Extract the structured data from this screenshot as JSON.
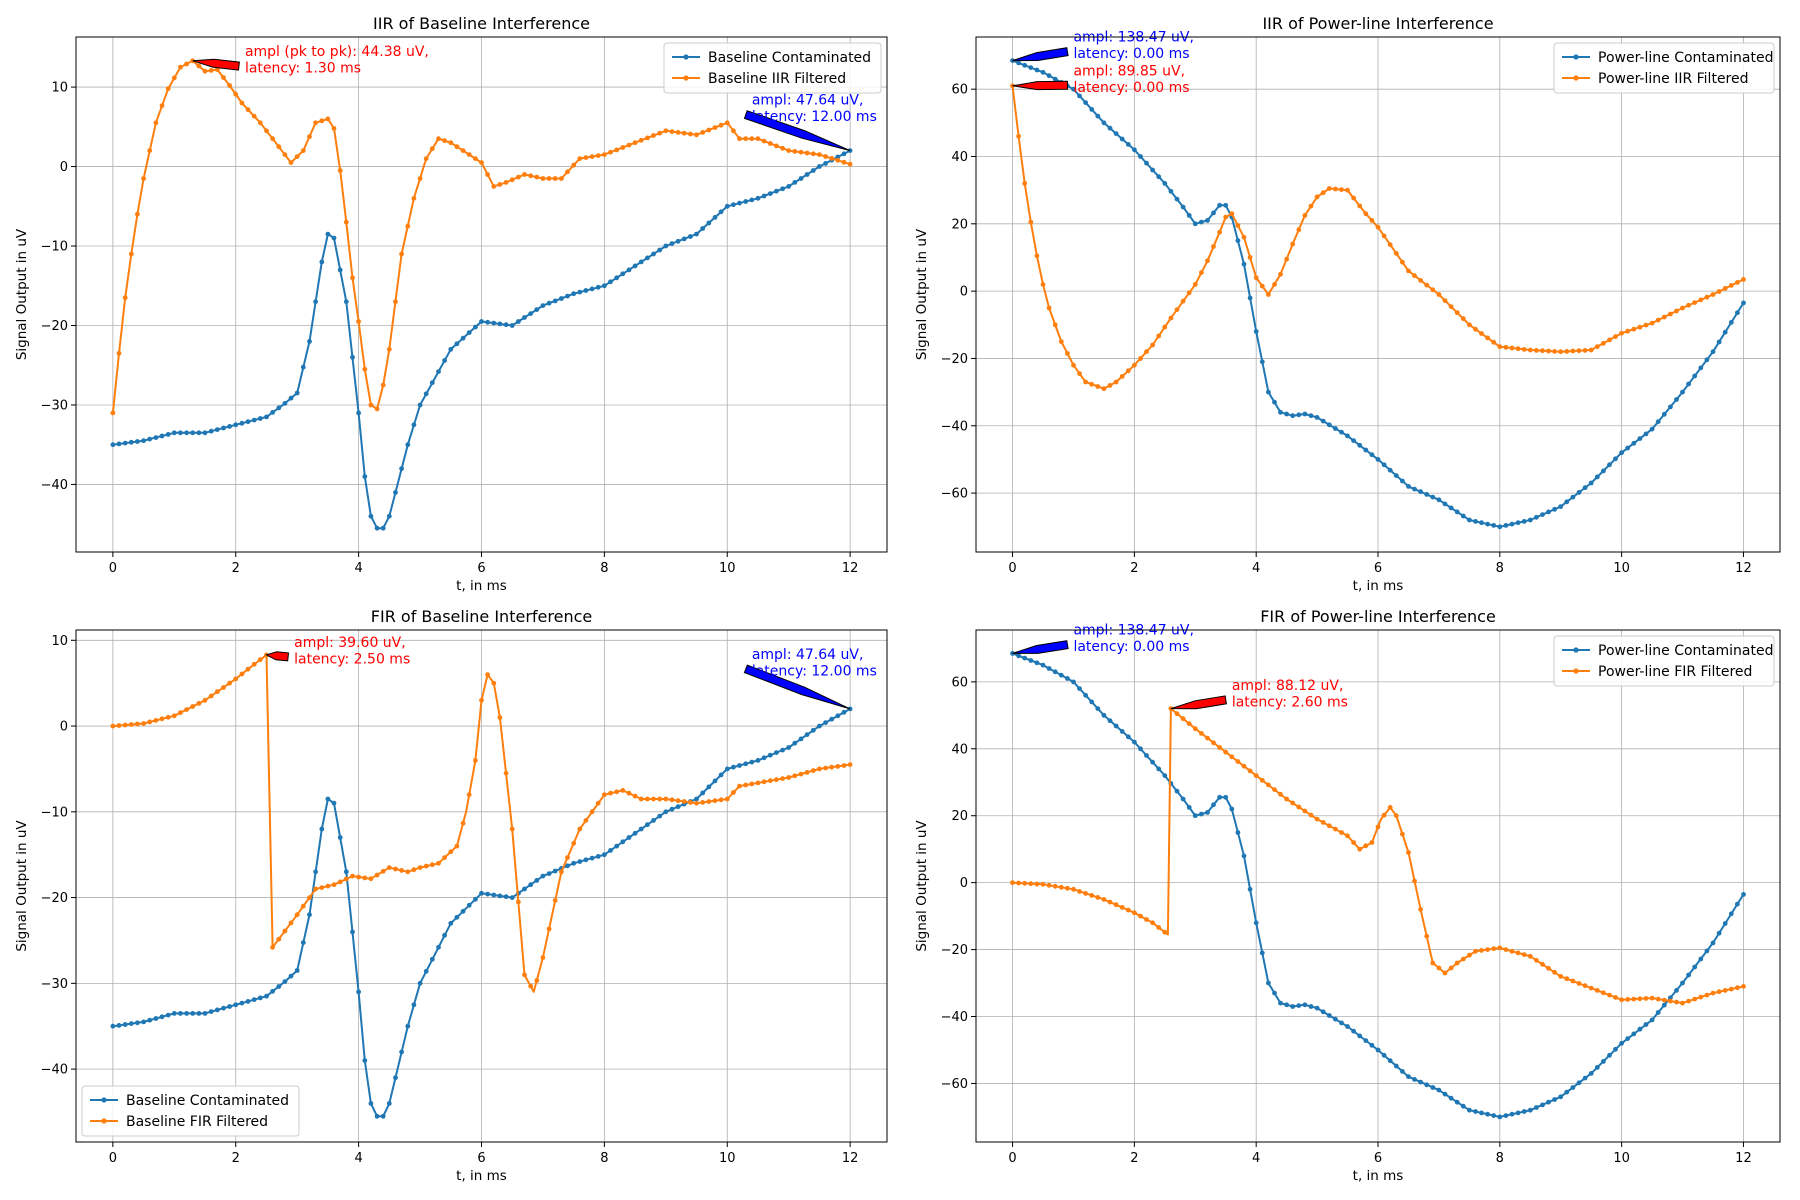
{
  "colors": {
    "contaminated": "#1f77b4",
    "filtered": "#ff7f0e",
    "annot_red": "#ff0000",
    "annot_blue": "#0000ff",
    "grid": "#b0b0b0"
  },
  "chart_data": [
    {
      "type": "line",
      "title": "IIR of Baseline Interference",
      "xlabel": "t, in ms",
      "ylabel": "Signal Output in uV",
      "xlim": [
        -0.6,
        12.6
      ],
      "ylim": [
        -48.5,
        16.3
      ],
      "xticks": [
        0,
        2,
        4,
        6,
        8,
        10,
        12
      ],
      "yticks": [
        -40,
        -30,
        -20,
        -10,
        0,
        10
      ],
      "grid": true,
      "legend_loc": "upper right",
      "series": [
        {
          "name": "Baseline Contaminated",
          "color_key": "contaminated",
          "x": [
            0,
            0.5,
            1.0,
            1.5,
            2.0,
            2.5,
            2.8,
            3.0,
            3.2,
            3.4,
            3.5,
            3.6,
            3.8,
            4.0,
            4.1,
            4.2,
            4.3,
            4.4,
            4.5,
            4.6,
            4.8,
            5.0,
            5.5,
            6.0,
            6.5,
            7.0,
            7.5,
            8.0,
            8.5,
            9.0,
            9.5,
            10.0,
            10.5,
            11.0,
            11.5,
            12.0
          ],
          "y": [
            -35,
            -34.5,
            -33.5,
            -33.5,
            -32.5,
            -31.5,
            -29.8,
            -28.5,
            -22,
            -12,
            -8.5,
            -9,
            -17,
            -31,
            -39,
            -44,
            -45.5,
            -45.5,
            -44,
            -41,
            -35,
            -30,
            -23,
            -19.5,
            -20,
            -17.5,
            -16,
            -15,
            -12.5,
            -10,
            -8.5,
            -5,
            -4,
            -2.5,
            0,
            2
          ]
        },
        {
          "name": "Baseline IIR Filtered",
          "color_key": "filtered",
          "x": [
            0,
            0.1,
            0.2,
            0.3,
            0.4,
            0.5,
            0.7,
            0.9,
            1.1,
            1.3,
            1.5,
            1.7,
            1.9,
            2.1,
            2.4,
            2.7,
            2.9,
            3.1,
            3.3,
            3.5,
            3.6,
            3.7,
            3.8,
            3.9,
            4.0,
            4.1,
            4.2,
            4.3,
            4.4,
            4.5,
            4.7,
            4.9,
            5.1,
            5.3,
            5.5,
            5.7,
            6.0,
            6.2,
            6.4,
            6.7,
            7.0,
            7.3,
            7.6,
            8.0,
            8.5,
            9.0,
            9.5,
            10.0,
            10.2,
            10.5,
            11.0,
            11.5,
            12.0
          ],
          "y": [
            -31,
            -23.5,
            -16.5,
            -11,
            -6,
            -1.5,
            5.5,
            9.8,
            12.5,
            13.3,
            12,
            12.2,
            10.2,
            8,
            5.5,
            2.5,
            0.5,
            2,
            5.5,
            6,
            4.8,
            -0.5,
            -7,
            -14,
            -19.5,
            -25.5,
            -30,
            -30.5,
            -27.5,
            -23,
            -11,
            -4,
            1,
            3.5,
            3,
            2,
            0.5,
            -2.5,
            -2,
            -1,
            -1.5,
            -1.5,
            1,
            1.5,
            3,
            4.5,
            4,
            5.5,
            3.5,
            3.5,
            2,
            1.5,
            0.3
          ]
        }
      ],
      "annotations": [
        {
          "lines": [
            "ampl (pk to pk): 44.38 uV,",
            "latency: 1.30 ms"
          ],
          "color_key": "annot_red",
          "point": [
            1.3,
            13.3
          ],
          "text_at": [
            2.15,
            14.4
          ],
          "arrow_color": "#ff0000"
        },
        {
          "lines": [
            "ampl: 47.64 uV,",
            "latency: 12.00 ms"
          ],
          "color_key": "annot_blue",
          "point": [
            12.0,
            2.0
          ],
          "text_at": [
            10.4,
            8.3
          ],
          "arrow_color": "#0000ff"
        }
      ]
    },
    {
      "type": "line",
      "title": "IIR of Power-line Interference",
      "xlabel": "t, in ms",
      "ylabel": "Signal Output in uV",
      "xlim": [
        -0.6,
        12.6
      ],
      "ylim": [
        -77.5,
        75.5
      ],
      "xticks": [
        0,
        2,
        4,
        6,
        8,
        10,
        12
      ],
      "yticks": [
        -60,
        -40,
        -20,
        0,
        20,
        40,
        60
      ],
      "grid": true,
      "legend_loc": "upper right",
      "series": [
        {
          "name": "Power-line Contaminated",
          "color_key": "contaminated",
          "x": [
            0,
            0.5,
            1.0,
            1.5,
            2.0,
            2.5,
            2.8,
            3.0,
            3.2,
            3.4,
            3.5,
            3.6,
            3.8,
            4.0,
            4.2,
            4.4,
            4.6,
            4.8,
            5.0,
            5.5,
            6.0,
            6.5,
            7.0,
            7.5,
            8.0,
            8.5,
            9.0,
            9.5,
            10.0,
            10.5,
            11.0,
            11.5,
            12.0
          ],
          "y": [
            68.5,
            65,
            60,
            50,
            42,
            32,
            25,
            20,
            21,
            25.5,
            25.5,
            22,
            8,
            -12,
            -30,
            -36,
            -37,
            -36.5,
            -37.5,
            -43,
            -50,
            -58,
            -62,
            -68,
            -70,
            -68,
            -64,
            -57,
            -48,
            -41,
            -30,
            -18,
            -3.5
          ]
        },
        {
          "name": "Power-line IIR Filtered",
          "color_key": "filtered",
          "x": [
            0,
            0.1,
            0.2,
            0.3,
            0.4,
            0.5,
            0.6,
            0.8,
            1.0,
            1.2,
            1.5,
            1.7,
            2.0,
            2.3,
            2.6,
            3.0,
            3.2,
            3.4,
            3.5,
            3.6,
            3.8,
            4.0,
            4.2,
            4.4,
            4.6,
            4.8,
            5.0,
            5.2,
            5.5,
            5.8,
            6.0,
            6.5,
            7.0,
            7.5,
            8.0,
            8.5,
            9.0,
            9.5,
            10.0,
            10.5,
            11.0,
            11.5,
            12.0
          ],
          "y": [
            61,
            46,
            32,
            20.5,
            10.5,
            2,
            -5,
            -15,
            -22,
            -27,
            -29,
            -27,
            -22,
            -16,
            -8,
            2,
            9,
            17.5,
            22,
            23,
            16,
            4,
            -1,
            5,
            14,
            22.5,
            28,
            30.5,
            30,
            23,
            19,
            6,
            -1,
            -10,
            -16.5,
            -17.5,
            -18,
            -17.5,
            -12.5,
            -9.5,
            -5,
            -1,
            3.5
          ]
        }
      ],
      "annotations": [
        {
          "lines": [
            "ampl: 138.47 uV,",
            "latency: 0.00 ms"
          ],
          "color_key": "annot_blue",
          "point": [
            0.0,
            68.5
          ],
          "text_at": [
            1.0,
            75.3
          ],
          "arrow_color": "#0000ff"
        },
        {
          "lines": [
            "ampl: 89.85 uV,",
            "latency: 0.00 ms"
          ],
          "color_key": "annot_red",
          "point": [
            0.0,
            61.0
          ],
          "text_at": [
            1.0,
            65.3
          ],
          "arrow_color": "#ff0000"
        }
      ]
    },
    {
      "type": "line",
      "title": "FIR of Baseline Interference",
      "xlabel": "t, in ms",
      "ylabel": "Signal Output in uV",
      "xlim": [
        -0.6,
        12.6
      ],
      "ylim": [
        -48.5,
        11.2
      ],
      "xticks": [
        0,
        2,
        4,
        6,
        8,
        10,
        12
      ],
      "yticks": [
        -40,
        -30,
        -20,
        -10,
        0,
        10
      ],
      "grid": true,
      "legend_loc": "lower left",
      "series": [
        {
          "name": "Baseline Contaminated",
          "color_key": "contaminated",
          "x": [
            0,
            0.5,
            1.0,
            1.5,
            2.0,
            2.5,
            2.8,
            3.0,
            3.2,
            3.4,
            3.5,
            3.6,
            3.8,
            4.0,
            4.1,
            4.2,
            4.3,
            4.4,
            4.5,
            4.6,
            4.8,
            5.0,
            5.5,
            6.0,
            6.5,
            7.0,
            7.5,
            8.0,
            8.5,
            9.0,
            9.5,
            10.0,
            10.5,
            11.0,
            11.5,
            12.0
          ],
          "y": [
            -35,
            -34.5,
            -33.5,
            -33.5,
            -32.5,
            -31.5,
            -29.8,
            -28.5,
            -22,
            -12,
            -8.5,
            -9,
            -17,
            -31,
            -39,
            -44,
            -45.5,
            -45.5,
            -44,
            -41,
            -35,
            -30,
            -23,
            -19.5,
            -20,
            -17.5,
            -16,
            -15,
            -12.5,
            -10,
            -8.5,
            -5,
            -4,
            -2.5,
            0,
            2
          ]
        },
        {
          "name": "Baseline FIR Filtered",
          "color_key": "filtered",
          "x": [
            0,
            0.5,
            1.0,
            1.5,
            2.0,
            2.3,
            2.5,
            2.6,
            3.0,
            3.3,
            3.6,
            3.9,
            4.2,
            4.5,
            4.8,
            5.0,
            5.3,
            5.6,
            5.75,
            5.9,
            6.0,
            6.1,
            6.2,
            6.3,
            6.5,
            6.7,
            6.85,
            7.0,
            7.3,
            7.6,
            8.0,
            8.3,
            8.6,
            9.0,
            9.5,
            10.0,
            10.2,
            10.6,
            11.0,
            11.5,
            12.0
          ],
          "y": [
            0,
            0.3,
            1.2,
            3,
            5.5,
            7.2,
            8.3,
            -25.8,
            -22,
            -19,
            -18.5,
            -17.5,
            -17.8,
            -16.5,
            -17,
            -16.5,
            -16,
            -14,
            -10,
            -4,
            3,
            6,
            5,
            1,
            -12,
            -29,
            -31,
            -27,
            -17,
            -12,
            -8,
            -7.5,
            -8.5,
            -8.5,
            -9,
            -8.5,
            -7,
            -6.5,
            -6,
            -5,
            -4.5
          ]
        }
      ],
      "annotations": [
        {
          "lines": [
            "ampl: 39.60 uV,",
            "latency: 2.50 ms"
          ],
          "color_key": "annot_red",
          "point": [
            2.5,
            8.3
          ],
          "text_at": [
            2.95,
            9.7
          ],
          "arrow_color": "#ff0000"
        },
        {
          "lines": [
            "ampl: 47.64 uV,",
            "latency: 12.00 ms"
          ],
          "color_key": "annot_blue",
          "point": [
            12.0,
            2.0
          ],
          "text_at": [
            10.4,
            8.3
          ],
          "arrow_color": "#0000ff"
        }
      ]
    },
    {
      "type": "line",
      "title": "FIR of Power-line Interference",
      "xlabel": "t, in ms",
      "ylabel": "Signal Output in uV",
      "xlim": [
        -0.6,
        12.6
      ],
      "ylim": [
        -77.5,
        75.5
      ],
      "xticks": [
        0,
        2,
        4,
        6,
        8,
        10,
        12
      ],
      "yticks": [
        -60,
        -40,
        -20,
        0,
        20,
        40,
        60
      ],
      "grid": true,
      "legend_loc": "upper right",
      "series": [
        {
          "name": "Power-line Contaminated",
          "color_key": "contaminated",
          "x": [
            0,
            0.5,
            1.0,
            1.5,
            2.0,
            2.5,
            2.8,
            3.0,
            3.2,
            3.4,
            3.5,
            3.6,
            3.8,
            4.0,
            4.2,
            4.4,
            4.6,
            4.8,
            5.0,
            5.5,
            6.0,
            6.5,
            7.0,
            7.5,
            8.0,
            8.5,
            9.0,
            9.5,
            10.0,
            10.5,
            11.0,
            11.5,
            12.0
          ],
          "y": [
            68.5,
            65,
            60,
            50,
            42,
            32,
            25,
            20,
            21,
            25.5,
            25.5,
            22,
            8,
            -12,
            -30,
            -36,
            -37,
            -36.5,
            -37.5,
            -43,
            -50,
            -58,
            -62,
            -68,
            -70,
            -68,
            -64,
            -57,
            -48,
            -41,
            -30,
            -18,
            -3.5
          ]
        },
        {
          "name": "Power-line FIR Filtered",
          "color_key": "filtered",
          "x": [
            0,
            0.5,
            1.0,
            1.5,
            2.0,
            2.3,
            2.55,
            2.6,
            3.0,
            3.5,
            4.0,
            4.5,
            5.0,
            5.5,
            5.7,
            5.9,
            6.05,
            6.2,
            6.3,
            6.5,
            6.7,
            6.9,
            7.1,
            7.3,
            7.6,
            8.0,
            8.5,
            9.0,
            9.5,
            10.0,
            10.5,
            11.0,
            11.5,
            12.0
          ],
          "y": [
            0,
            -0.5,
            -2,
            -5,
            -9,
            -12,
            -15.5,
            52,
            46,
            39,
            32,
            25,
            19,
            14,
            10,
            12,
            19,
            22.5,
            20,
            9,
            -8,
            -24,
            -27,
            -24,
            -20.5,
            -19.5,
            -22,
            -28,
            -31.5,
            -35,
            -34.5,
            -36,
            -33,
            -31
          ]
        }
      ],
      "annotations": [
        {
          "lines": [
            "ampl: 138.47 uV,",
            "latency: 0.00 ms"
          ],
          "color_key": "annot_blue",
          "point": [
            0.0,
            68.5
          ],
          "text_at": [
            1.0,
            75.3
          ],
          "arrow_color": "#0000ff"
        },
        {
          "lines": [
            "ampl: 88.12 uV,",
            "latency: 2.60 ms"
          ],
          "color_key": "annot_red",
          "point": [
            2.6,
            52.0
          ],
          "text_at": [
            3.6,
            58.8
          ],
          "arrow_color": "#ff0000"
        }
      ]
    }
  ]
}
